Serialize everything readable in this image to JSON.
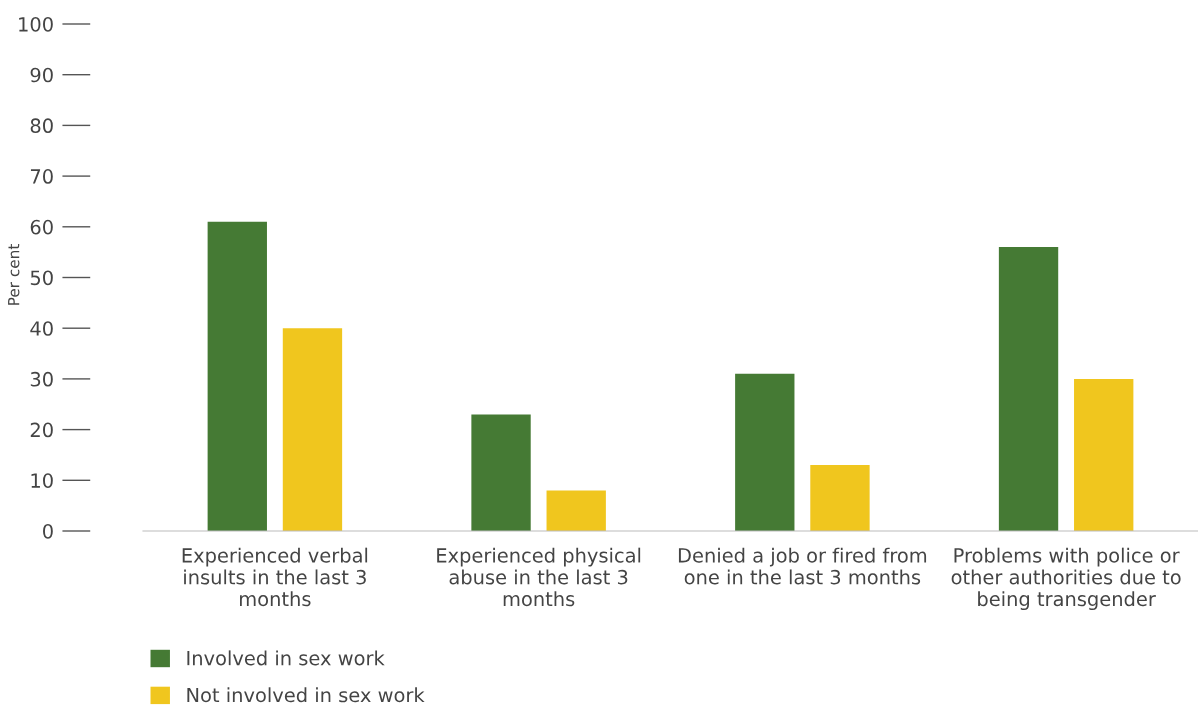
{
  "chart_data": {
    "type": "bar",
    "ylabel": "Per cent",
    "categories": [
      "Experienced verbal insults in the last 3 months",
      "Experienced physical abuse in the last 3 months",
      "Denied a job or fired from one in the last 3 months",
      "Problems with police or other authorities due to being transgender"
    ],
    "series": [
      {
        "name": "Involved in sex work",
        "color": "#457a34",
        "values": [
          61,
          23,
          31,
          56
        ]
      },
      {
        "name": "Not involved in sex work",
        "color": "#f0c61e",
        "values": [
          40,
          8,
          13,
          30
        ]
      }
    ],
    "ylim": [
      0,
      100
    ],
    "yticks": [
      0,
      10,
      20,
      30,
      40,
      50,
      60,
      70,
      80,
      90,
      100
    ],
    "grid": false,
    "legend": "bottom left"
  }
}
